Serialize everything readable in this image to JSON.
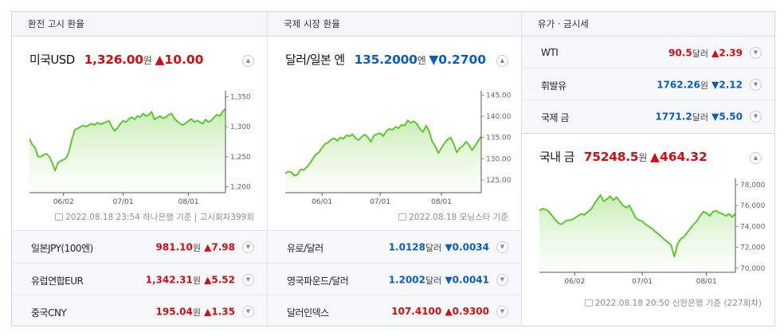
{
  "colors": {
    "up": "#d40d12",
    "down": "#0a5dc2",
    "line": "#5cc82e"
  },
  "exchange": {
    "header": "환전 고시 환율",
    "main": {
      "name": "미국USD",
      "value": "1,326.00",
      "unit": "원",
      "change": "▲10.00",
      "dir": "up"
    },
    "source": "2022.08.18 23:54 하나은행 기준 | 고시회차399회",
    "rows": [
      {
        "name": "일본JPY(100엔)",
        "value": "981.10",
        "unit": "원",
        "change": "▲7.98",
        "dir": "up"
      },
      {
        "name": "유럽연합EUR",
        "value": "1,342.31",
        "unit": "원",
        "change": "▲5.52",
        "dir": "up"
      },
      {
        "name": "중국CNY",
        "value": "195.04",
        "unit": "원",
        "change": "▲1.35",
        "dir": "up"
      }
    ]
  },
  "market": {
    "header": "국제 시장 환율",
    "main": {
      "name": "달러/일본 엔",
      "value": "135.2000",
      "unit": "엔",
      "change": "▼0.2700",
      "dir": "down"
    },
    "source": "2022.08.18 모닝스타 기준",
    "rows": [
      {
        "name": "유로/달러",
        "value": "1.0128",
        "unit": "달러",
        "change": "▼0.0034",
        "dir": "down"
      },
      {
        "name": "영국파운드/달러",
        "value": "1.2002",
        "unit": "달러",
        "change": "▼0.0041",
        "dir": "down"
      },
      {
        "name": "달러인덱스",
        "value": "107.4100",
        "unit": "",
        "change": "▲0.9300",
        "dir": "up"
      }
    ]
  },
  "commodity": {
    "header": "유가 · 금시세",
    "rows": [
      {
        "name": "WTI",
        "value": "90.5",
        "unit": "달러",
        "change": "▲2.39",
        "dir": "up"
      },
      {
        "name": "휘발유",
        "value": "1762.26",
        "unit": "원",
        "change": "▼2.12",
        "dir": "down"
      },
      {
        "name": "국제 금",
        "value": "1771.2",
        "unit": "달러",
        "change": "▼5.50",
        "dir": "down"
      }
    ],
    "main": {
      "name": "국내 금",
      "value": "75248.5",
      "unit": "원",
      "change": "▲464.32",
      "dir": "up"
    },
    "source": "2022.08.18 20:50 신한은행 기준 (227회차)"
  },
  "chart_data": [
    {
      "type": "area",
      "series_ref": "미국USD",
      "x_ticks": [
        "06/02",
        "07/01",
        "08/01"
      ],
      "y_ticks": [
        "1,350",
        "1,300",
        "1,250",
        "1,200"
      ],
      "ylim": [
        1190,
        1360
      ],
      "tick_index": [
        12,
        33,
        56
      ],
      "values": [
        1280,
        1270,
        1265,
        1250,
        1250,
        1253,
        1255,
        1250,
        1240,
        1227,
        1240,
        1243,
        1245,
        1248,
        1260,
        1280,
        1295,
        1297,
        1300,
        1302,
        1300,
        1303,
        1305,
        1303,
        1307,
        1304,
        1306,
        1308,
        1310,
        1300,
        1293,
        1298,
        1305,
        1310,
        1308,
        1313,
        1316,
        1312,
        1318,
        1316,
        1322,
        1318,
        1320,
        1325,
        1312,
        1315,
        1318,
        1314,
        1316,
        1320,
        1322,
        1314,
        1309,
        1305,
        1303,
        1306,
        1310,
        1313,
        1308,
        1310,
        1308,
        1305,
        1312,
        1308,
        1310,
        1316,
        1320,
        1318,
        1325,
        1330
      ]
    },
    {
      "type": "area",
      "series_ref": "달러/일본 엔",
      "x_ticks": [
        "06/01",
        "07/01",
        "08/01"
      ],
      "y_ticks": [
        "145.00",
        "140.00",
        "135.00",
        "130.00",
        "125.00"
      ],
      "ylim": [
        122,
        146
      ],
      "tick_index": [
        12,
        31,
        51
      ],
      "values": [
        126.5,
        127,
        126.8,
        126,
        126.3,
        127.5,
        127.3,
        128,
        128.8,
        130,
        131,
        131.5,
        132.5,
        133.5,
        133.8,
        134.5,
        134.8,
        134.2,
        135,
        134.7,
        135.5,
        135.3,
        135.8,
        134.8,
        134.4,
        135.2,
        135.7,
        135,
        134,
        135.5,
        135.8,
        136,
        135.3,
        136.5,
        137,
        136.8,
        137.5,
        137.2,
        138,
        137.8,
        139,
        138.5,
        138.8,
        138.2,
        137,
        136.3,
        137.8,
        136.5,
        134,
        133,
        131.3,
        132.5,
        133.7,
        134.5,
        135,
        133.5,
        131.5,
        132.5,
        133,
        134,
        133.3,
        132,
        133,
        134.2,
        135.2
      ]
    },
    {
      "type": "area",
      "series_ref": "국내 금",
      "x_ticks": [
        "06/02",
        "07/01",
        "08/01"
      ],
      "y_ticks": [
        "78,000",
        "76,000",
        "74,000",
        "72,000",
        "70,000"
      ],
      "ylim": [
        69600,
        78600
      ],
      "tick_index": [
        11,
        32,
        52
      ],
      "values": [
        75500,
        75700,
        75600,
        75400,
        75000,
        74600,
        74300,
        74200,
        74500,
        74600,
        74600,
        74800,
        75000,
        75200,
        75100,
        75400,
        75600,
        76100,
        76600,
        77000,
        76400,
        76600,
        76900,
        76500,
        76800,
        76400,
        76000,
        75800,
        76000,
        75400,
        74800,
        74600,
        74500,
        74200,
        74000,
        73800,
        73500,
        73300,
        73000,
        72700,
        72500,
        72200,
        71100,
        72300,
        72800,
        73000,
        73400,
        73800,
        74200,
        74500,
        75000,
        75400,
        75300,
        75000,
        75400,
        75500,
        75300,
        75200,
        75000,
        75200,
        74900,
        75200
      ]
    }
  ]
}
